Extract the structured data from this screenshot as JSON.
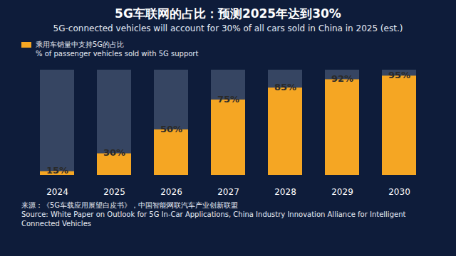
{
  "chart_data": {
    "type": "bar",
    "title": "5G车联网的占比：预测2025年达到30%",
    "subtitle": "5G-connected vehicles will account for 30% of all cars sold in China in 2025 (est.)",
    "categories": [
      "2024",
      "2025",
      "2026",
      "2027",
      "2028",
      "2029",
      "2030"
    ],
    "series": [
      {
        "name": "乘用车销量中支持5G的占比\n% of passenger vehicles sold with 5G support",
        "color": "#f5a623",
        "values": [
          15,
          30,
          50,
          75,
          85,
          92,
          95
        ],
        "value_labels": [
          "15%",
          "30%",
          "50%",
          "75%",
          "85%",
          "92%",
          "95%"
        ]
      }
    ],
    "ylim": [
      0,
      100
    ],
    "tick_labels": "x",
    "data_labels": true,
    "grid": false,
    "legend": "top-left",
    "notes": [
      "来源：《5G车载应用展望白皮书》，中国智能网联汽车产业创新联盟",
      "Source: White Paper on Outlook for 5G In-Car Applications, China Industry Innovation Alliance for Intelligent Connected Vehicles"
    ]
  }
}
